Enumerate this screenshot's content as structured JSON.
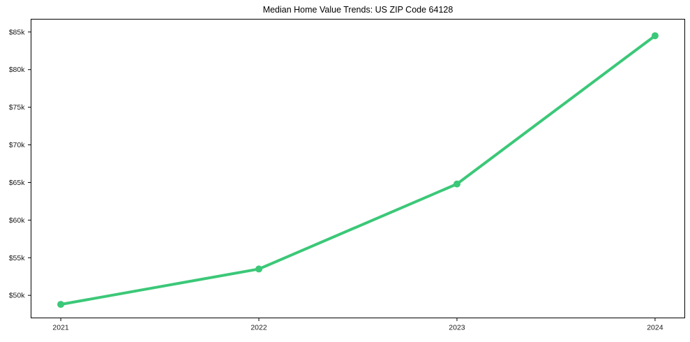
{
  "chart_data": {
    "type": "line",
    "title": "Median Home Value Trends: US ZIP Code 64128",
    "x_labels": [
      "2021",
      "2022",
      "2023",
      "2024"
    ],
    "x": [
      2021,
      2022,
      2023,
      2024
    ],
    "values": [
      48800,
      53500,
      64800,
      84500
    ],
    "xlabel": "",
    "ylabel": "",
    "xlim": [
      2020.85,
      2024.15
    ],
    "ylim": [
      47000,
      86700
    ],
    "yticks": [
      {
        "value": 50000,
        "label": "$50k"
      },
      {
        "value": 55000,
        "label": "$55k"
      },
      {
        "value": 60000,
        "label": "$60k"
      },
      {
        "value": 65000,
        "label": "$65k"
      },
      {
        "value": 70000,
        "label": "$70k"
      },
      {
        "value": 75000,
        "label": "$75k"
      },
      {
        "value": 80000,
        "label": "$80k"
      },
      {
        "value": 85000,
        "label": "$85k"
      }
    ],
    "grid": false,
    "legend": "none"
  },
  "style": {
    "line_color": "#3bc878",
    "axis_color": "#000000",
    "text_color": "#1a1a1a",
    "background": "#ffffff",
    "line_width": 4,
    "marker_radius": 5
  }
}
